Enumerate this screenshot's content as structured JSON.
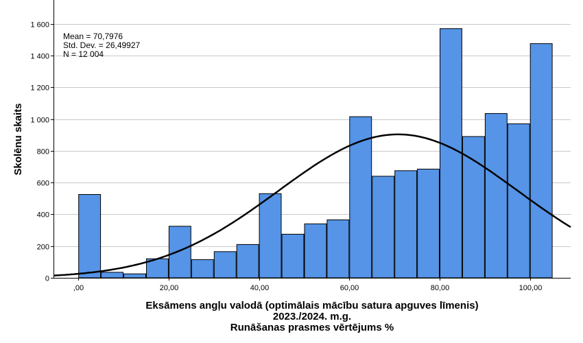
{
  "chart_data": {
    "type": "bar",
    "subtype": "histogram",
    "bin_width": 5,
    "x_bin_starts": [
      0,
      5,
      10,
      15,
      20,
      25,
      30,
      35,
      40,
      45,
      50,
      55,
      60,
      65,
      70,
      75,
      80,
      85,
      90,
      95,
      100
    ],
    "values": [
      525,
      35,
      25,
      120,
      325,
      115,
      165,
      210,
      530,
      275,
      340,
      365,
      1015,
      640,
      675,
      685,
      1570,
      890,
      1035,
      970,
      1475
    ],
    "xlim": [
      -5.5,
      109
    ],
    "ylim": [
      0,
      1750
    ],
    "x_ticks": [
      0,
      20,
      40,
      60,
      80,
      100
    ],
    "x_tick_labels": [
      ",00",
      "20,00",
      "40,00",
      "60,00",
      "80,00",
      "100,00"
    ],
    "y_ticks": [
      0,
      200,
      400,
      600,
      800,
      1000,
      1200,
      1400,
      1600
    ],
    "y_tick_labels": [
      "0",
      "200",
      "400",
      "600",
      "800",
      "1 000",
      "1 200",
      "1 400",
      "1 600"
    ],
    "ylabel": "Skolēnu skaits",
    "xlabel_lines": [
      "Eksāmens angļu valodā (optimālais mācību satura apguves līmenis)",
      "2023./2024. m.g.",
      "Runāšanas prasmes vērtējums %"
    ],
    "stats": [
      "Mean = 70,7976",
      "Std. Dev. = 26,49927",
      "N = 12 004"
    ],
    "normal_curve": {
      "mean": 70.7976,
      "sd": 26.49927,
      "n": 12004
    },
    "grid": true,
    "colors": {
      "bar_fill": "#5594e6",
      "bar_stroke": "#000000",
      "grid": "#c8c8c8",
      "curve": "#000000"
    }
  }
}
